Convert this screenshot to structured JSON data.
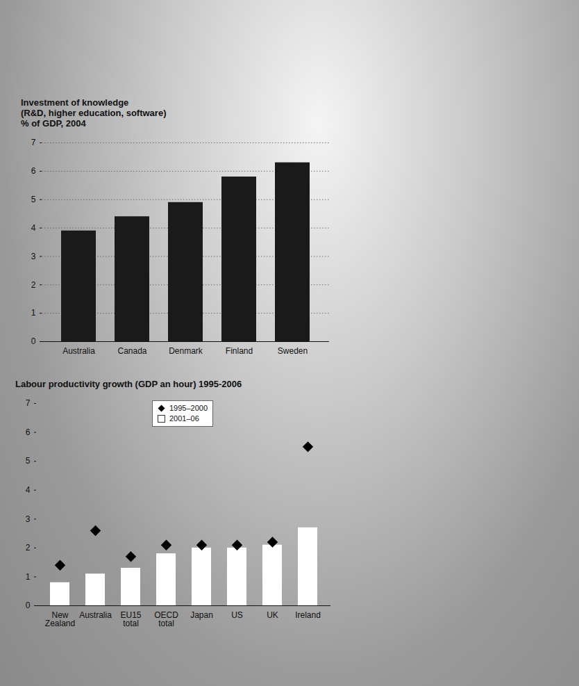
{
  "chart_data": [
    {
      "type": "bar",
      "title": "Investment of knowledge",
      "subtitle": "(R&D, higher education, software)",
      "ylabel": "% of GDP, 2004",
      "categories": [
        "Australia",
        "Canada",
        "Denmark",
        "Finland",
        "Sweden"
      ],
      "values": [
        3.9,
        4.4,
        4.9,
        5.8,
        6.3
      ],
      "color": "#1a1a1a",
      "ylim": [
        0,
        7
      ],
      "yticks": [
        0,
        1,
        2,
        3,
        4,
        5,
        6,
        7
      ],
      "grid": true
    },
    {
      "type": "bar",
      "title": "Labour productivity growth (GDP an hour) 1995-2006",
      "categories": [
        "New Zealand",
        "Australia",
        "EU15 total",
        "OECD total",
        "Japan",
        "US",
        "UK",
        "Ireland"
      ],
      "series": [
        {
          "name": "1995–2000",
          "type": "scatter",
          "marker": "diamond",
          "color": "#000000",
          "values": [
            1.4,
            2.6,
            1.7,
            2.1,
            2.1,
            2.1,
            2.2,
            5.5
          ]
        },
        {
          "name": "2001–06",
          "type": "bar",
          "color": "#ffffff",
          "values": [
            0.8,
            1.1,
            1.3,
            1.8,
            2.0,
            2.0,
            2.1,
            2.7
          ]
        }
      ],
      "ylim": [
        0,
        7
      ],
      "yticks": [
        0,
        1,
        2,
        3,
        4,
        5,
        6,
        7
      ],
      "grid": false,
      "legend": "top"
    }
  ]
}
